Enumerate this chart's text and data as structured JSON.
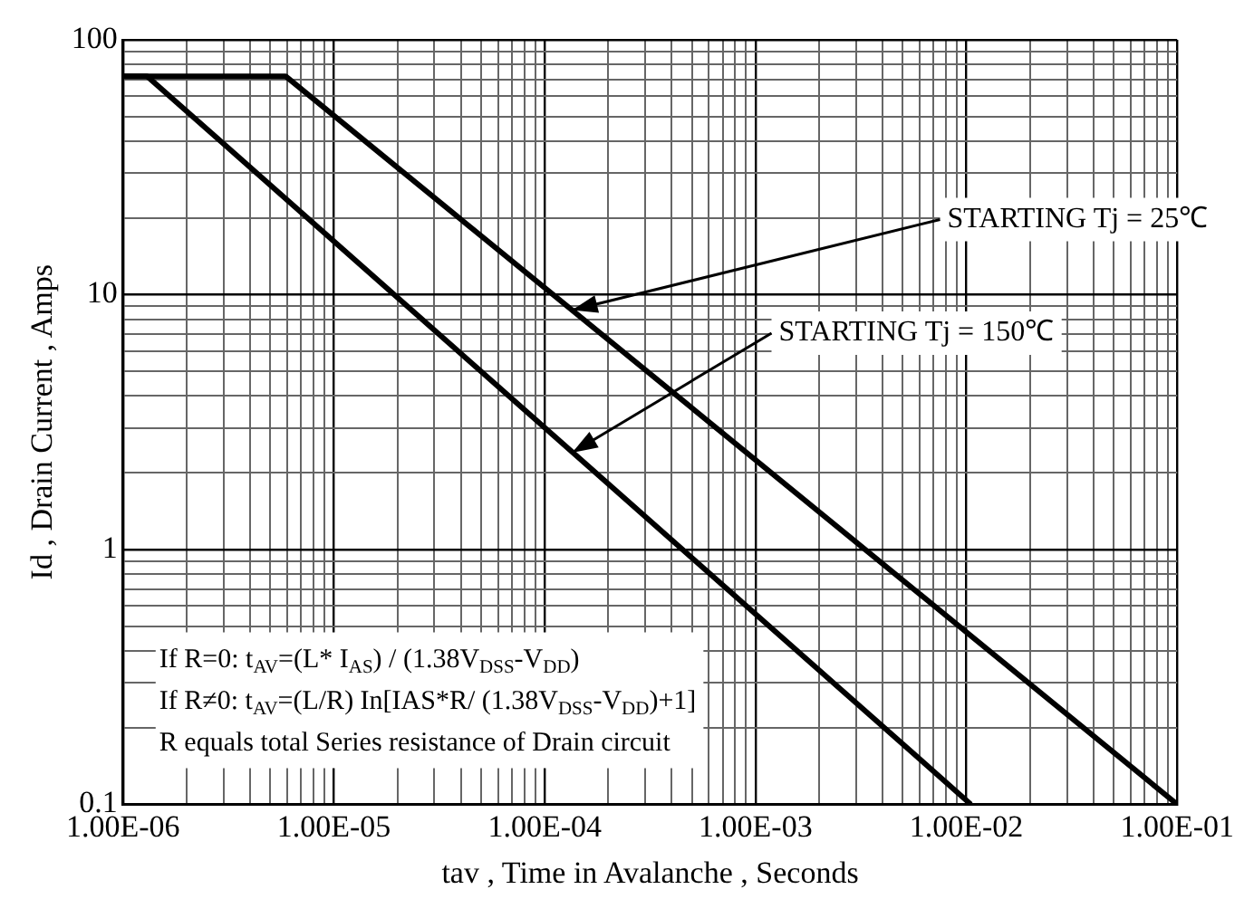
{
  "chart_data": {
    "type": "line",
    "xlabel": "tav , Time in Avalanche , Seconds",
    "ylabel": "Id , Drain Current , Amps",
    "log": "xy",
    "grid": true,
    "legend": false,
    "marker": "none",
    "line_style": "solid",
    "xlim": [
      1e-06,
      0.1
    ],
    "ylim": [
      0.1,
      100
    ],
    "xticks": [
      {
        "value": 1e-06,
        "label": "1.00E-06"
      },
      {
        "value": 2e-06,
        "label": null
      },
      {
        "value": 3e-06,
        "label": null
      },
      {
        "value": 4e-06,
        "label": null
      },
      {
        "value": 5e-06,
        "label": null
      },
      {
        "value": 6e-06,
        "label": null
      },
      {
        "value": 7e-06,
        "label": null
      },
      {
        "value": 8e-06,
        "label": null
      },
      {
        "value": 9e-06,
        "label": null
      },
      {
        "value": 1e-05,
        "label": "1.00E-05"
      },
      {
        "value": 2e-05,
        "label": null
      },
      {
        "value": 3e-05,
        "label": null
      },
      {
        "value": 4e-05,
        "label": null
      },
      {
        "value": 5e-05,
        "label": null
      },
      {
        "value": 6e-05,
        "label": null
      },
      {
        "value": 7e-05,
        "label": null
      },
      {
        "value": 8e-05,
        "label": null
      },
      {
        "value": 9e-05,
        "label": null
      },
      {
        "value": 0.0001,
        "label": "1.00E-04"
      },
      {
        "value": 0.0002,
        "label": null
      },
      {
        "value": 0.0003,
        "label": null
      },
      {
        "value": 0.0004,
        "label": null
      },
      {
        "value": 0.0005,
        "label": null
      },
      {
        "value": 0.0006,
        "label": null
      },
      {
        "value": 0.0007,
        "label": null
      },
      {
        "value": 0.0008,
        "label": null
      },
      {
        "value": 0.0009,
        "label": null
      },
      {
        "value": 0.001,
        "label": "1.00E-03"
      },
      {
        "value": 0.002,
        "label": null
      },
      {
        "value": 0.003,
        "label": null
      },
      {
        "value": 0.004,
        "label": null
      },
      {
        "value": 0.005,
        "label": null
      },
      {
        "value": 0.006,
        "label": null
      },
      {
        "value": 0.007,
        "label": null
      },
      {
        "value": 0.008,
        "label": null
      },
      {
        "value": 0.009,
        "label": null
      },
      {
        "value": 0.01,
        "label": "1.00E-02"
      },
      {
        "value": 0.02,
        "label": null
      },
      {
        "value": 0.03,
        "label": null
      },
      {
        "value": 0.04,
        "label": null
      },
      {
        "value": 0.05,
        "label": null
      },
      {
        "value": 0.06,
        "label": null
      },
      {
        "value": 0.07,
        "label": null
      },
      {
        "value": 0.08,
        "label": null
      },
      {
        "value": 0.09,
        "label": null
      },
      {
        "value": 0.1,
        "label": "1.00E-01"
      }
    ],
    "yticks": [
      0.1,
      {
        "value": 0.2,
        "label": null
      },
      {
        "value": 0.3,
        "label": null
      },
      {
        "value": 0.4,
        "label": null
      },
      {
        "value": 0.5,
        "label": null
      },
      {
        "value": 0.6,
        "label": null
      },
      {
        "value": 0.7,
        "label": null
      },
      {
        "value": 0.8,
        "label": null
      },
      {
        "value": 0.9,
        "label": null
      },
      1,
      {
        "value": 2,
        "label": null
      },
      {
        "value": 3,
        "label": null
      },
      {
        "value": 4,
        "label": null
      },
      {
        "value": 5,
        "label": null
      },
      {
        "value": 6,
        "label": null
      },
      {
        "value": 7,
        "label": null
      },
      {
        "value": 8,
        "label": null
      },
      {
        "value": 9,
        "label": null
      },
      10,
      {
        "value": 20,
        "label": null
      },
      {
        "value": 30,
        "label": null
      },
      {
        "value": 40,
        "label": null
      },
      {
        "value": 50,
        "label": null
      },
      {
        "value": 60,
        "label": null
      },
      {
        "value": 70,
        "label": null
      },
      {
        "value": 80,
        "label": null
      },
      {
        "value": 90,
        "label": null
      },
      100
    ],
    "series": [
      {
        "color": "#000000",
        "x": [
          1e-06,
          5.9e-06,
          0.1
        ],
        "values": [
          72,
          72,
          0.1
        ]
      },
      {
        "color": "#000000",
        "x": [
          1e-06,
          1.3e-06,
          0.0105
        ],
        "values": [
          72,
          72,
          0.1
        ]
      }
    ],
    "annotations": [
      {
        "text": "STARTING Tj = 25℃",
        "x": 0.000135,
        "y": 8.7
      },
      {
        "text": "STARTING Tj = 150℃",
        "x": 0.000135,
        "y": 2.4
      },
      "If R=0: t$_{AV}$=(L* I$_{AS}$) / (1.38V$_{DSS}$-V$_{DD}$)",
      "If R≠0: t$_{AV}$=(L/R) In[IAS*R/ (1.38V$_{DSS}$-V$_{DD}$)+1]",
      "R equals total Series resistance of Drain circuit"
    ]
  }
}
